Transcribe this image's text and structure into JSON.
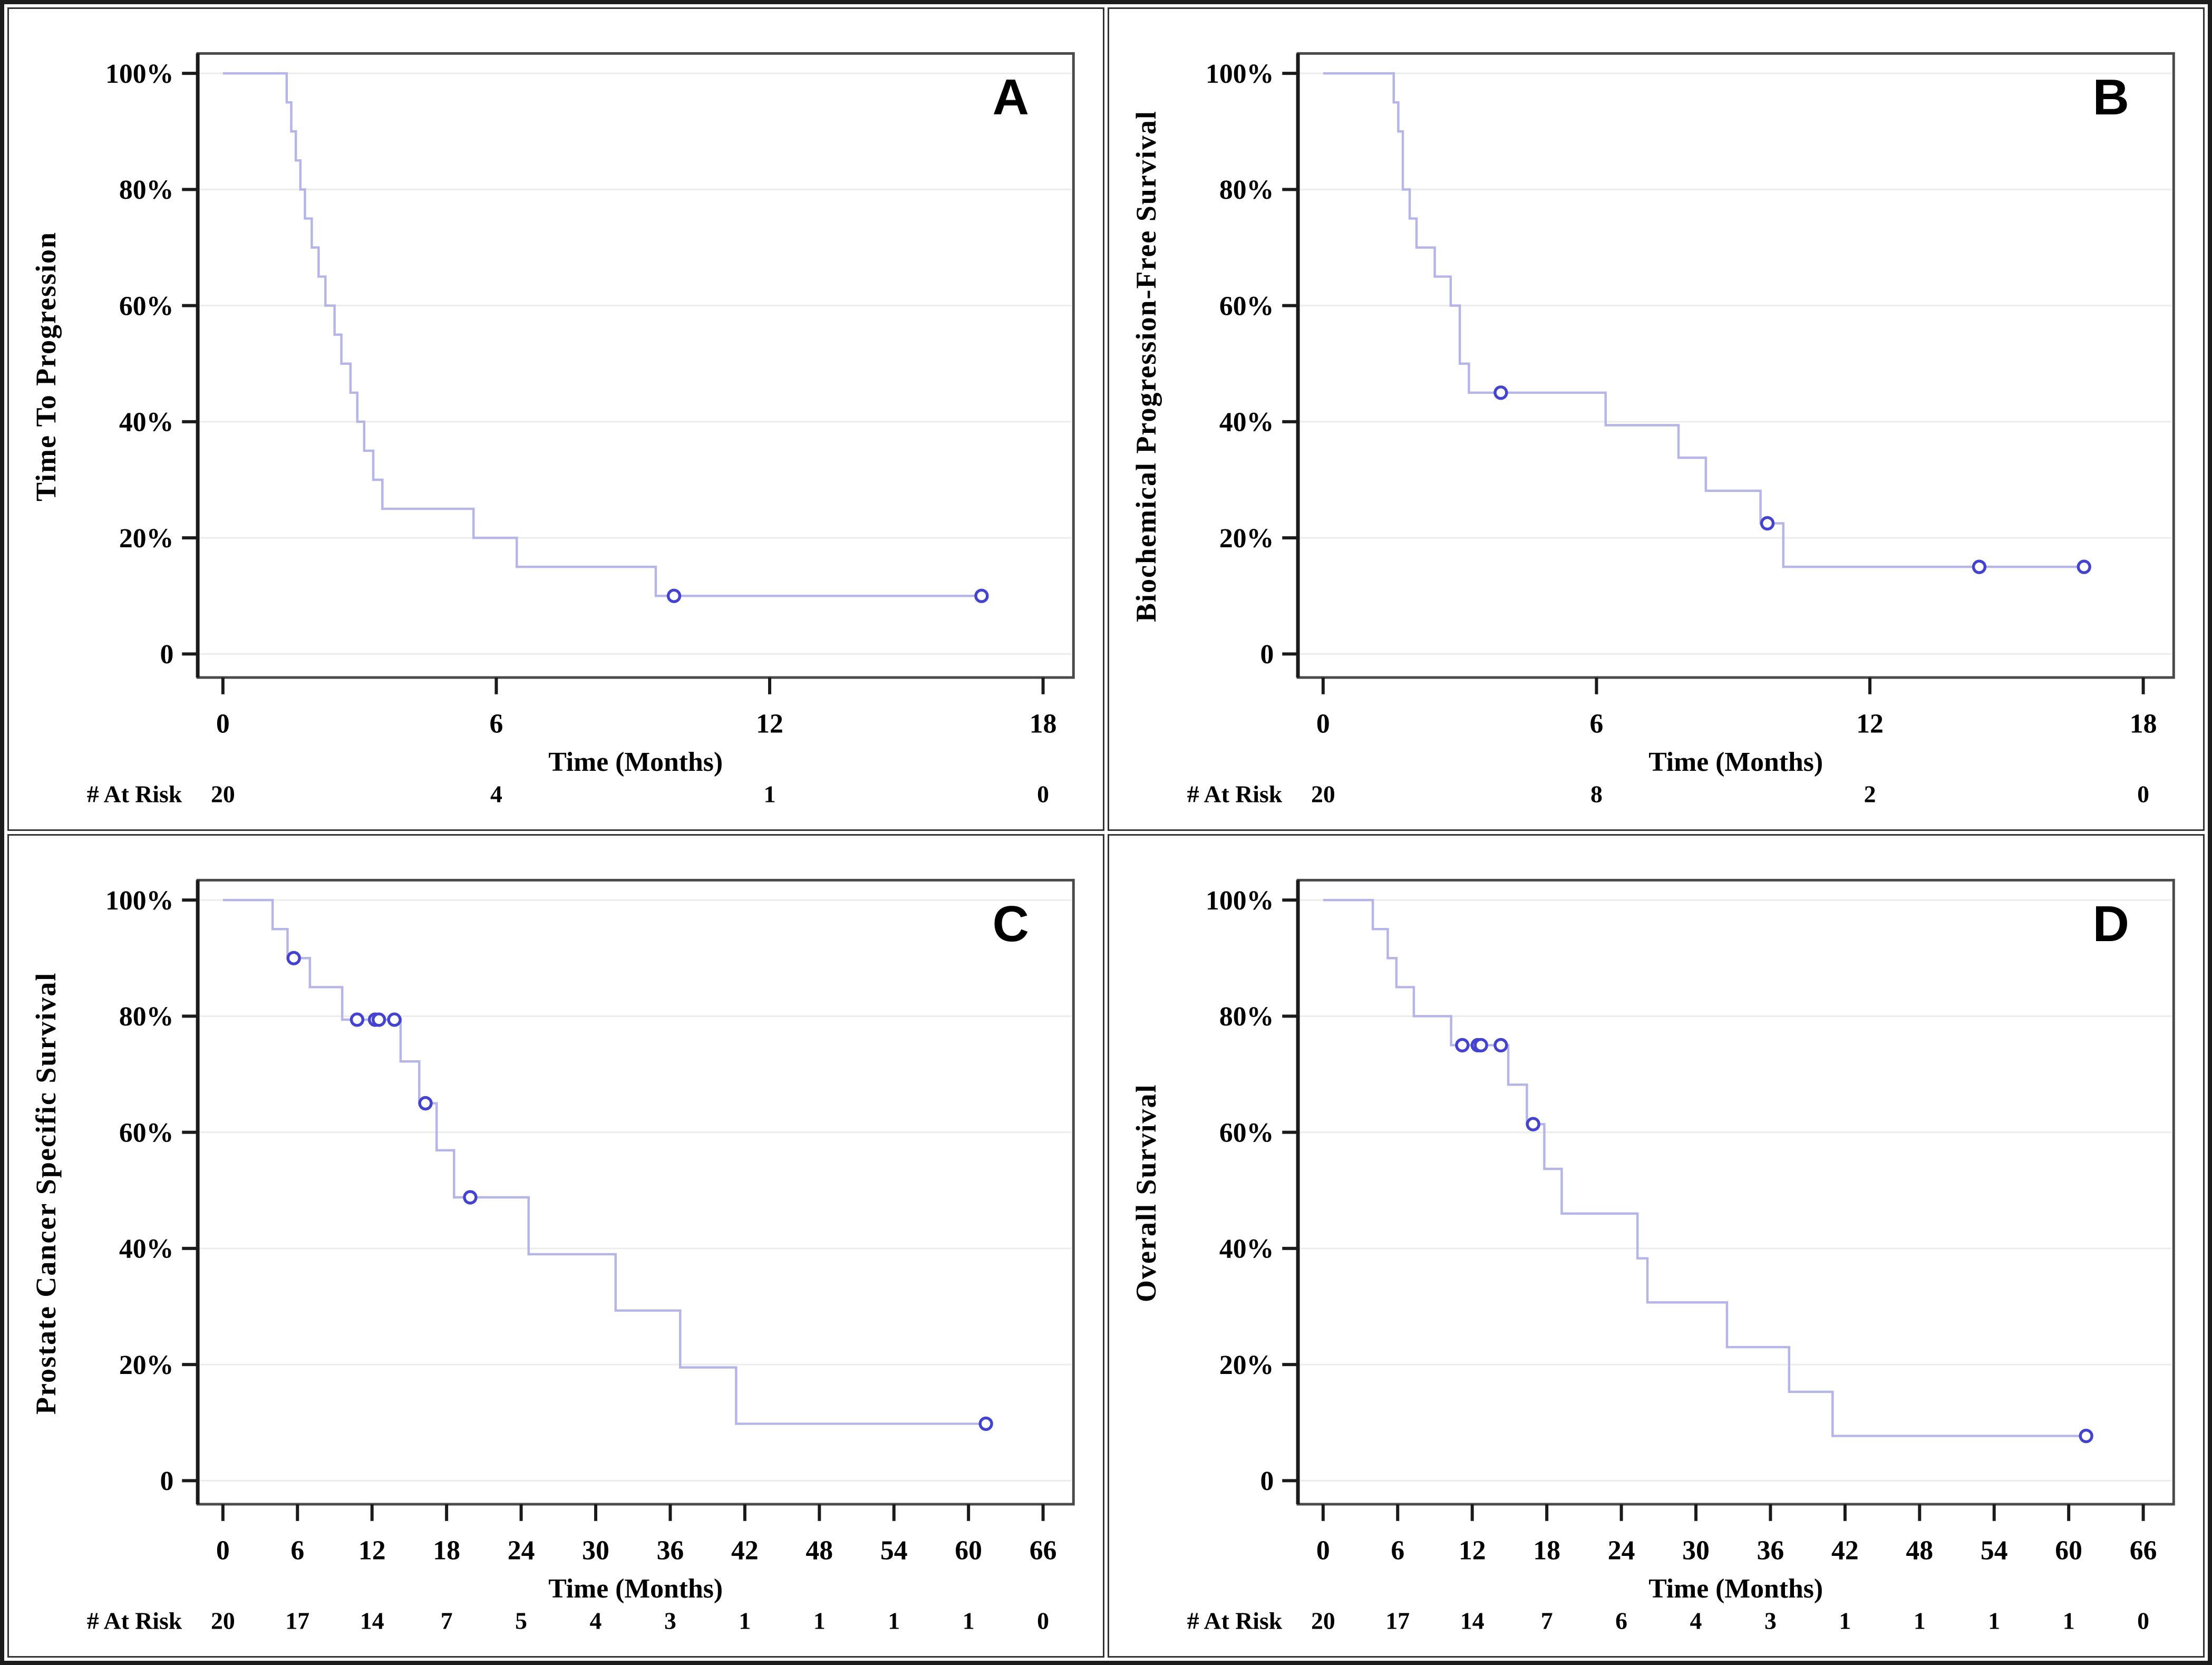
{
  "figure": {
    "x_axis_label": "Time (Months)",
    "at_risk_label": "# At Risk",
    "y_tick_labels": [
      "100%",
      "80%",
      "60%",
      "40%",
      "20%",
      "0"
    ],
    "y_tick_values": [
      100,
      80,
      60,
      40,
      20,
      0
    ]
  },
  "colors": {
    "curve": "#b5b5e8",
    "censor": "#4343d0",
    "grid": "#ececec",
    "frame": "#4a4a4a",
    "axis": "#1a1a1a",
    "text": "#000000"
  },
  "chart_data": [
    {
      "type": "line",
      "letter": "A",
      "y_title": "Time To Progression",
      "xlabel": "Time (Months)",
      "xmax": 18,
      "xticks": [
        0,
        6,
        12,
        18
      ],
      "at_risk": [
        20,
        4,
        1,
        0
      ],
      "ylim": [
        0,
        100
      ],
      "grid": true,
      "end_time": 16.75,
      "steps": [
        [
          0,
          100
        ],
        [
          1.4,
          95
        ],
        [
          1.5,
          90
        ],
        [
          1.6,
          85
        ],
        [
          1.7,
          80
        ],
        [
          1.8,
          75
        ],
        [
          1.95,
          70
        ],
        [
          2.1,
          65
        ],
        [
          2.25,
          60
        ],
        [
          2.45,
          55
        ],
        [
          2.6,
          50
        ],
        [
          2.8,
          45
        ],
        [
          2.95,
          40
        ],
        [
          3.1,
          35
        ],
        [
          3.3,
          30
        ],
        [
          3.5,
          25
        ],
        [
          5.5,
          20
        ],
        [
          6.45,
          15
        ],
        [
          9.5,
          10
        ]
      ],
      "censors": [
        [
          9.9,
          10
        ],
        [
          16.65,
          10
        ]
      ]
    },
    {
      "type": "line",
      "letter": "B",
      "y_title": "Biochemical Progression-Free Survival",
      "xlabel": "Time (Months)",
      "xmax": 18,
      "xticks": [
        0,
        6,
        12,
        18
      ],
      "at_risk": [
        20,
        8,
        2,
        0
      ],
      "ylim": [
        0,
        100
      ],
      "grid": true,
      "end_time": 16.8,
      "steps": [
        [
          0,
          100
        ],
        [
          1.55,
          95
        ],
        [
          1.65,
          90
        ],
        [
          1.75,
          80
        ],
        [
          1.9,
          75
        ],
        [
          2.05,
          70
        ],
        [
          2.45,
          65
        ],
        [
          2.8,
          60
        ],
        [
          3.0,
          50
        ],
        [
          3.2,
          45
        ],
        [
          6.2,
          39.4
        ],
        [
          7.8,
          33.8
        ],
        [
          8.4,
          28.1
        ],
        [
          9.6,
          22.5
        ],
        [
          10.1,
          15
        ]
      ],
      "censors": [
        [
          3.9,
          45
        ],
        [
          9.75,
          22.5
        ],
        [
          14.4,
          15
        ],
        [
          16.7,
          15
        ]
      ]
    },
    {
      "type": "line",
      "letter": "C",
      "y_title": "Prostate Cancer Specific Survival",
      "xlabel": "Time (Months)",
      "xmax": 66,
      "xticks": [
        0,
        6,
        12,
        18,
        24,
        30,
        36,
        42,
        48,
        54,
        60,
        66
      ],
      "at_risk": [
        20,
        17,
        14,
        7,
        5,
        4,
        3,
        1,
        1,
        1,
        1,
        0
      ],
      "ylim": [
        0,
        100
      ],
      "grid": true,
      "end_time": 61.9,
      "steps": [
        [
          0,
          100
        ],
        [
          4,
          95
        ],
        [
          5.2,
          90
        ],
        [
          7,
          85
        ],
        [
          9.6,
          79.4
        ],
        [
          14.3,
          72.2
        ],
        [
          15.8,
          65
        ],
        [
          17.2,
          56.9
        ],
        [
          18.6,
          48.8
        ],
        [
          24.6,
          39.0
        ],
        [
          31.6,
          29.3
        ],
        [
          36.8,
          19.5
        ],
        [
          41.3,
          9.8
        ]
      ],
      "censors": [
        [
          5.7,
          90
        ],
        [
          10.8,
          79.4
        ],
        [
          12.25,
          79.4
        ],
        [
          12.55,
          79.4
        ],
        [
          13.8,
          79.4
        ],
        [
          16.3,
          65
        ],
        [
          19.9,
          48.8
        ],
        [
          61.4,
          9.8
        ]
      ]
    },
    {
      "type": "line",
      "letter": "D",
      "y_title": "Overall Survival",
      "xlabel": "Time (Months)",
      "xmax": 66,
      "xticks": [
        0,
        6,
        12,
        18,
        24,
        30,
        36,
        42,
        48,
        54,
        60,
        66
      ],
      "at_risk": [
        20,
        17,
        14,
        7,
        6,
        4,
        3,
        1,
        1,
        1,
        1,
        0
      ],
      "ylim": [
        0,
        100
      ],
      "grid": true,
      "end_time": 61.9,
      "steps": [
        [
          0,
          100
        ],
        [
          4,
          95
        ],
        [
          5.2,
          90
        ],
        [
          5.9,
          85
        ],
        [
          7.3,
          80
        ],
        [
          10.3,
          75
        ],
        [
          14.9,
          68.2
        ],
        [
          16.4,
          61.4
        ],
        [
          17.8,
          53.7
        ],
        [
          19.2,
          46.0
        ],
        [
          25.3,
          38.3
        ],
        [
          26.1,
          30.7
        ],
        [
          32.5,
          23.0
        ],
        [
          37.5,
          15.3
        ],
        [
          41,
          7.7
        ]
      ],
      "censors": [
        [
          11.2,
          75
        ],
        [
          12.45,
          75
        ],
        [
          12.7,
          75
        ],
        [
          14.3,
          75
        ],
        [
          16.9,
          61.4
        ],
        [
          61.4,
          7.7
        ]
      ]
    }
  ]
}
